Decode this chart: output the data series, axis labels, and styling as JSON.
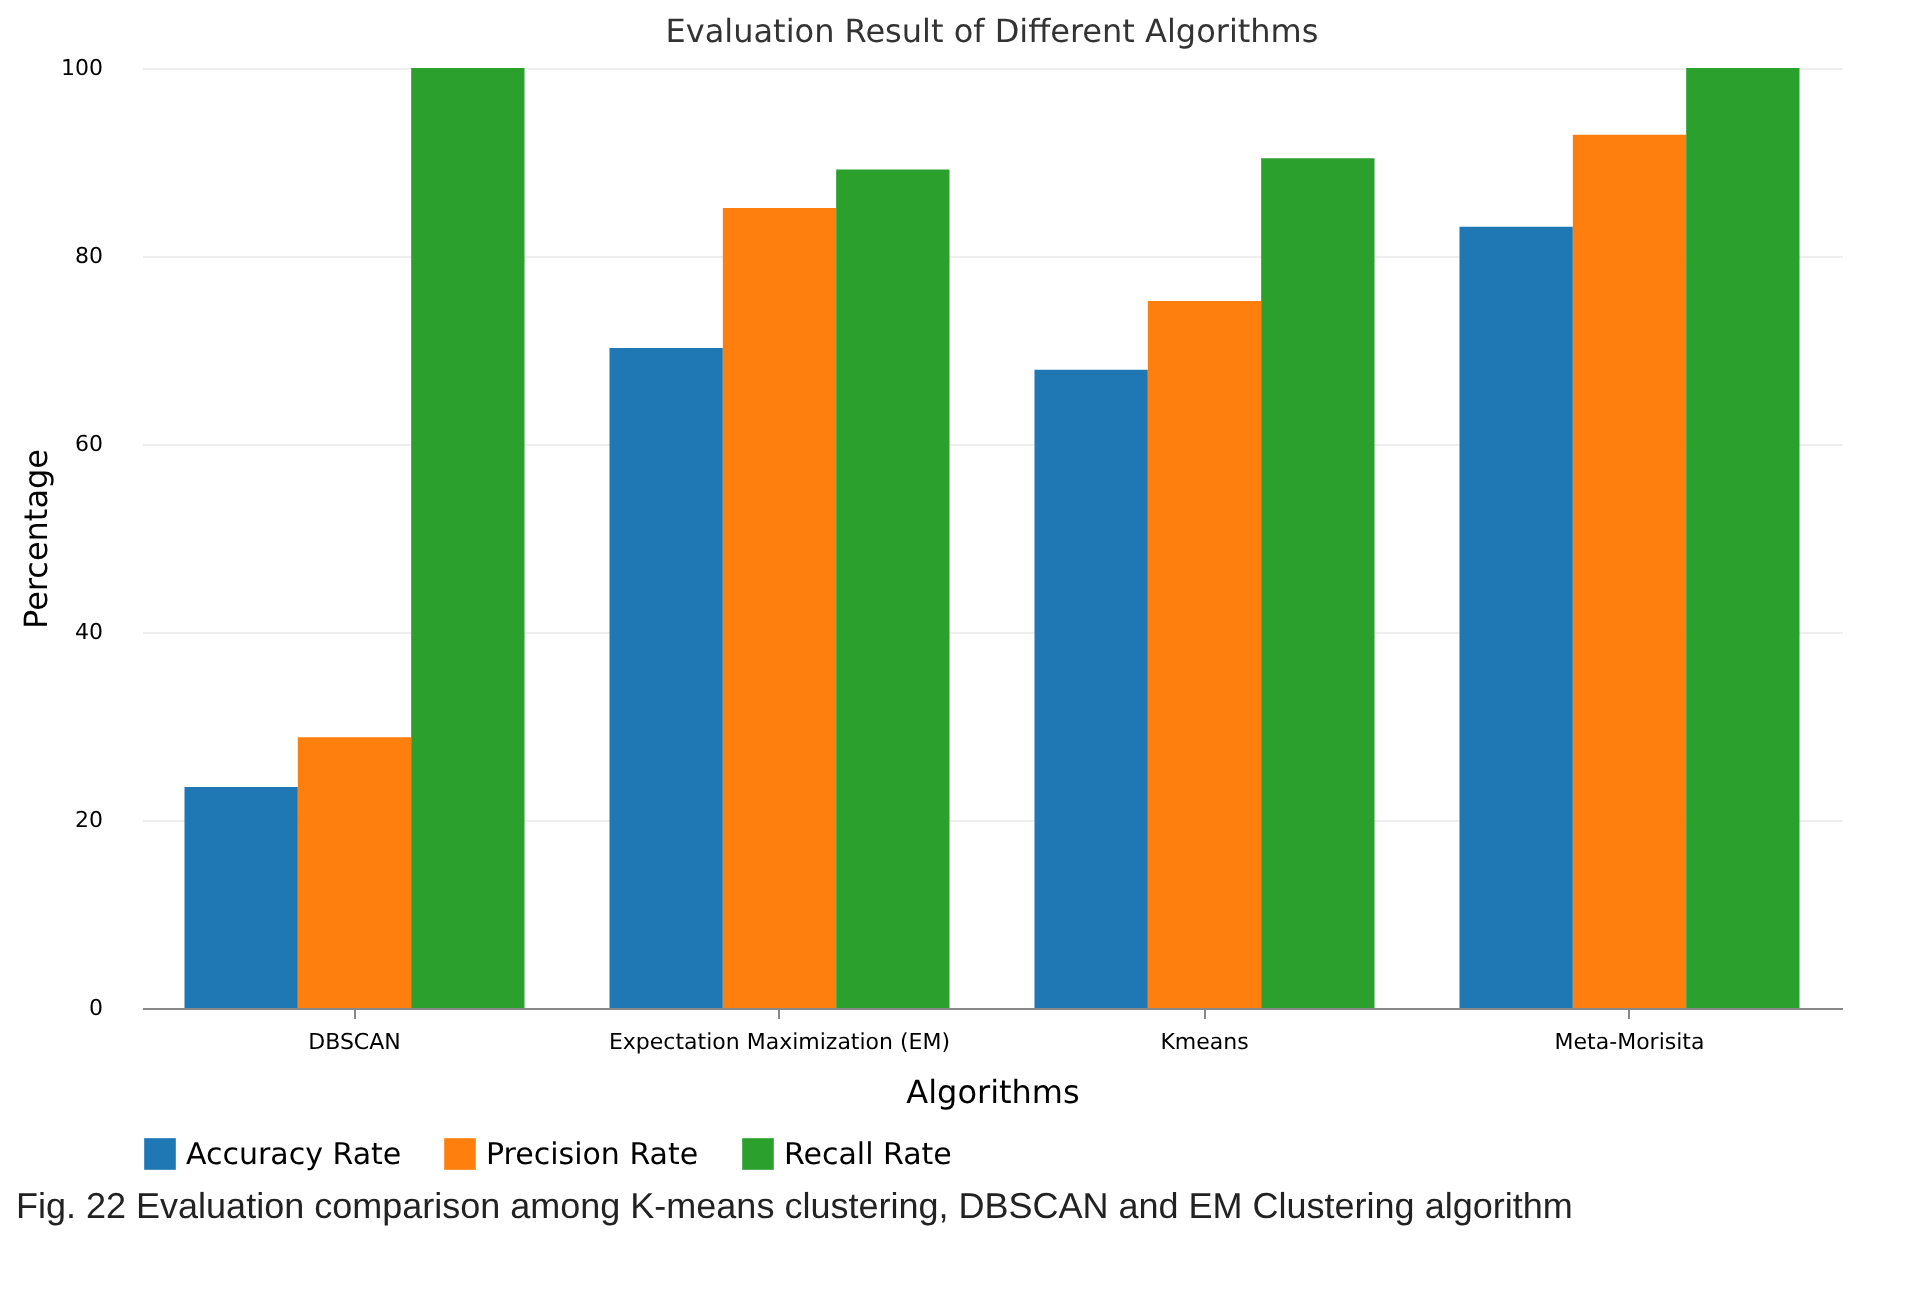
{
  "chart_data": {
    "type": "bar",
    "title": "Evaluation Result of Different Algorithms",
    "xlabel": "Algorithms",
    "ylabel": "Percentage",
    "categories": [
      "DBSCAN",
      "Expectation Maximization (EM)",
      "Kmeans",
      "Meta-Morisita"
    ],
    "series": [
      {
        "name": "Accuracy Rate",
        "color": "#1f77b4",
        "values": [
          23.5,
          70.2,
          67.9,
          83.1
        ]
      },
      {
        "name": "Precision Rate",
        "color": "#ff7f0e",
        "values": [
          28.8,
          85.1,
          75.2,
          92.9
        ]
      },
      {
        "name": "Recall Rate",
        "color": "#2ca02c",
        "values": [
          100,
          89.2,
          90.4,
          100
        ]
      }
    ],
    "ylim": [
      0,
      100
    ],
    "yticks": [
      0,
      20,
      40,
      60,
      80,
      100
    ],
    "grid": "y",
    "legend": "bottom",
    "annotations": [
      "Fig. 22  Evaluation comparison among K-means clustering, DBSCAN and EM Clustering algorithm"
    ]
  }
}
